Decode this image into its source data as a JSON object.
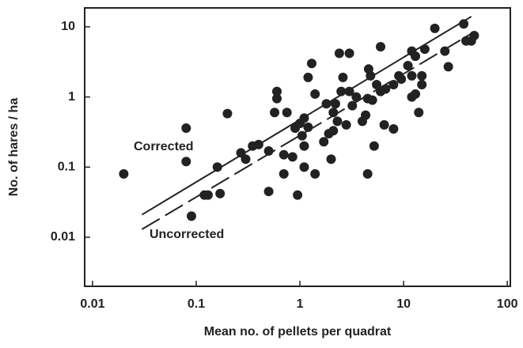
{
  "chart_data": {
    "type": "scatter",
    "x_label": "Mean no. of pellets per quadrat",
    "y_label": "No. of hares / ha",
    "log_x": true,
    "log_y": true,
    "xlim": [
      0.0084,
      107
    ],
    "ylim": [
      0.002,
      18.6
    ],
    "xticks": [
      0.01,
      0.1,
      1,
      10,
      100
    ],
    "yticks": [
      0.01,
      0.1,
      1,
      10
    ],
    "color": "#222222",
    "x": [
      0.02,
      0.08,
      0.08,
      0.09,
      0.12,
      0.13,
      0.16,
      0.17,
      0.2,
      0.27,
      0.3,
      0.35,
      0.4,
      0.5,
      0.5,
      0.57,
      0.6,
      0.6,
      0.7,
      0.7,
      0.75,
      0.85,
      0.9,
      0.95,
      1.0,
      1.05,
      1.1,
      1.1,
      1.1,
      1.2,
      1.2,
      1.3,
      1.4,
      1.4,
      1.7,
      1.8,
      1.9,
      2.0,
      2.1,
      2.1,
      2.2,
      2.3,
      2.4,
      2.5,
      2.6,
      2.8,
      3.0,
      3.0,
      3.2,
      3.5,
      4.0,
      4.3,
      4.5,
      4.5,
      4.6,
      4.8,
      5.0,
      5.2,
      5.5,
      6.0,
      6.0,
      6.5,
      6.7,
      8.0,
      8.0,
      9.0,
      9.5,
      11,
      12,
      12,
      12,
      13,
      13,
      14,
      15,
      15,
      16,
      20,
      25,
      27,
      38,
      40,
      45,
      48
    ],
    "values": [
      0.08,
      0.36,
      0.12,
      0.02,
      0.04,
      0.04,
      0.1,
      0.042,
      0.58,
      0.16,
      0.13,
      0.2,
      0.21,
      0.045,
      0.17,
      0.6,
      1.2,
      0.95,
      0.15,
      0.08,
      0.6,
      0.14,
      0.36,
      0.04,
      0.42,
      0.28,
      0.5,
      0.2,
      0.1,
      0.37,
      1.9,
      3.0,
      0.08,
      1.1,
      0.23,
      0.8,
      0.3,
      0.13,
      0.6,
      0.33,
      0.8,
      0.45,
      4.2,
      1.2,
      1.9,
      0.4,
      4.2,
      1.2,
      0.75,
      1.0,
      0.45,
      0.55,
      0.08,
      0.95,
      2.5,
      2.0,
      0.9,
      0.2,
      1.5,
      5.2,
      1.2,
      0.4,
      1.3,
      0.35,
      1.5,
      2.0,
      1.8,
      2.8,
      4.5,
      2.0,
      1.0,
      3.8,
      1.1,
      0.6,
      2.0,
      1.5,
      4.8,
      9.5,
      4.5,
      2.7,
      11,
      6.3,
      6.3,
      7.5
    ],
    "fit_lines": [
      {
        "x": [
          0.03,
          45
        ],
        "values": [
          0.021,
          14
        ],
        "dashed": false
      },
      {
        "x": [
          0.03,
          45
        ],
        "values": [
          0.013,
          8
        ],
        "dashed": true
      }
    ],
    "annotations": [
      "Corrected",
      "Uncorrected"
    ]
  }
}
